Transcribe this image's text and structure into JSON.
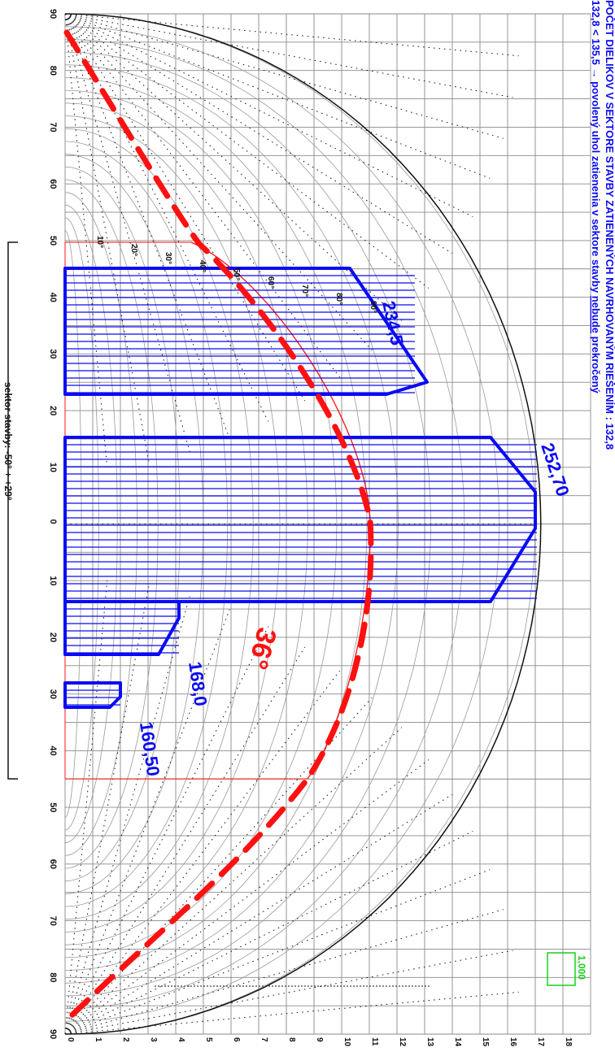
{
  "header": {
    "line1": "POČET DIELIKOV V SEKTORE STAVBY ZATIENENÝCH NAVRHOVANÝM RIEŠENÍM : 132,8",
    "line2_prefix": "132,8 < 135,5 →  povolený uhol zatienenia v sektore stavby ",
    "line2_emphasis": "nebude",
    "line2_suffix": " prekročený"
  },
  "sector_label": "sektor stavby: -50° + +29°",
  "sector_note": "... ... ... ... ...",
  "limit_angle_label": "36°",
  "reference_value": "1,000",
  "x_axis_labels": [
    "90",
    "80",
    "70",
    "60",
    "50",
    "40",
    "30",
    "20",
    "10",
    "0",
    "10",
    "20",
    "30",
    "40",
    "50",
    "60",
    "70",
    "80",
    "90"
  ],
  "y_axis_labels": [
    "0",
    "1",
    "2",
    "3",
    "4",
    "5",
    "6",
    "7",
    "8",
    "9",
    "10",
    "11",
    "12",
    "13",
    "14",
    "15",
    "16",
    "17",
    "18"
  ],
  "inner_angle_labels": [
    "10°",
    "20°",
    "30°",
    "40°",
    "50°",
    "60°",
    "70°",
    "80°",
    "90°"
  ],
  "shading_blocks": [
    {
      "label": "234,5"
    },
    {
      "label": "252,70"
    },
    {
      "label": "168,0"
    },
    {
      "label": "160,50"
    }
  ],
  "colors": {
    "blue": "#0a0af5",
    "red": "#ff1010",
    "green": "#18d018",
    "grid": "#8a8a8a"
  }
}
